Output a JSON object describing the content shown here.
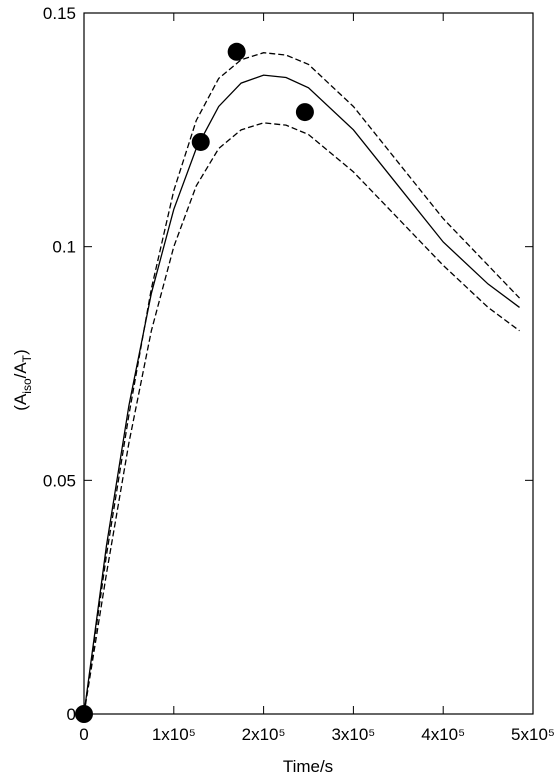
{
  "chart_data": {
    "type": "line",
    "x_label": "Time/s",
    "y_label": [
      "(A",
      "iso",
      "/A",
      "T",
      ")"
    ],
    "xlim": [
      0,
      500000
    ],
    "ylim": [
      0,
      0.15
    ],
    "xticks": [
      {
        "value": 0,
        "label": "0"
      },
      {
        "value": 100000,
        "label": "1x10⁵"
      },
      {
        "value": 200000,
        "label": "2x10⁵"
      },
      {
        "value": 300000,
        "label": "3x10⁵"
      },
      {
        "value": 400000,
        "label": "4x10⁵"
      },
      {
        "value": 500000,
        "label": "5x10⁵"
      }
    ],
    "yticks": [
      0,
      0.05,
      0.1,
      0.15
    ],
    "series": [
      {
        "style": "markers",
        "color": "#000000",
        "x": [
          0,
          130000,
          170000,
          246000
        ],
        "values": [
          0,
          0.1224,
          0.1417,
          0.1288
        ]
      },
      {
        "style": "solid",
        "color": "#000000",
        "x": [
          0,
          25000,
          50000,
          75000,
          100000,
          125000,
          150000,
          175000,
          200000,
          225000,
          250000,
          300000,
          350000,
          400000,
          450000,
          485000
        ],
        "values": [
          0,
          0.036,
          0.066,
          0.09,
          0.108,
          0.121,
          0.13,
          0.135,
          0.1367,
          0.1362,
          0.134,
          0.125,
          0.113,
          0.101,
          0.092,
          0.087
        ]
      },
      {
        "style": "dashed",
        "color": "#000000",
        "x": [
          0,
          25000,
          50000,
          75000,
          100000,
          125000,
          150000,
          175000,
          200000,
          225000,
          250000,
          300000,
          350000,
          400000,
          450000,
          485000
        ],
        "values": [
          0,
          0.034,
          0.064,
          0.091,
          0.112,
          0.127,
          0.136,
          0.14,
          0.1415,
          0.141,
          0.139,
          0.13,
          0.118,
          0.106,
          0.096,
          0.089
        ]
      },
      {
        "style": "dashed",
        "color": "#000000",
        "x": [
          0,
          25000,
          50000,
          75000,
          100000,
          125000,
          150000,
          175000,
          200000,
          225000,
          250000,
          300000,
          350000,
          400000,
          450000,
          485000
        ],
        "values": [
          0,
          0.03,
          0.058,
          0.082,
          0.1,
          0.113,
          0.121,
          0.125,
          0.1265,
          0.126,
          0.124,
          0.116,
          0.106,
          0.096,
          0.087,
          0.082
        ]
      }
    ]
  }
}
